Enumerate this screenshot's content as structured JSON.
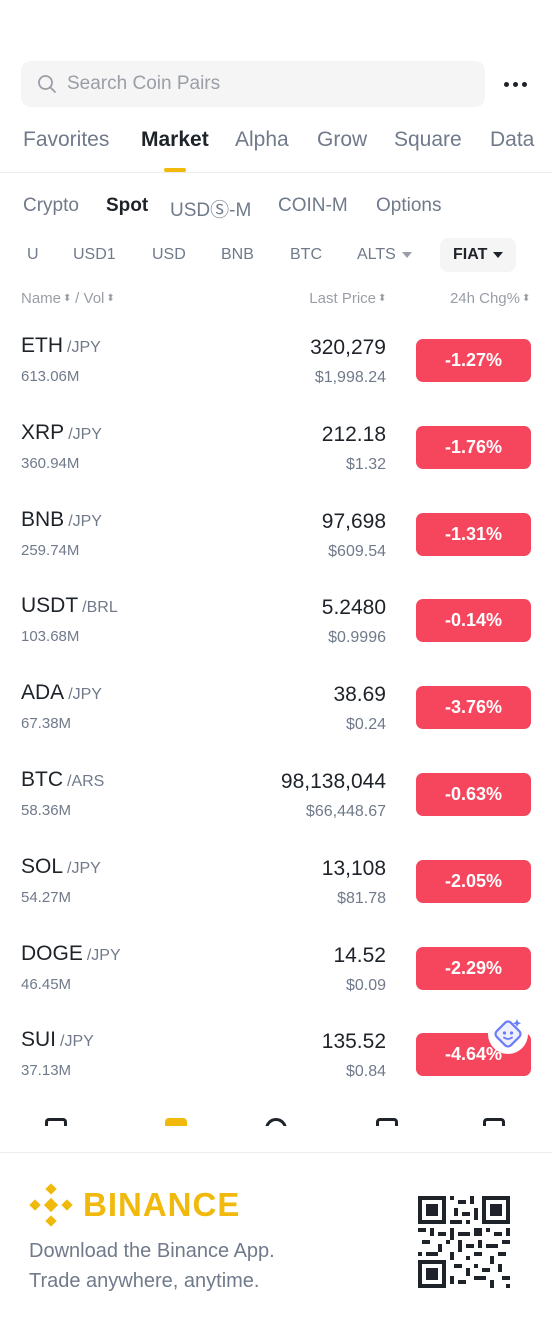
{
  "search": {
    "placeholder": "Search Coin Pairs"
  },
  "main_tabs": [
    "Favorites",
    "Market",
    "Alpha",
    "Grow",
    "Square",
    "Data"
  ],
  "main_tab_active": "Market",
  "sub_tabs": [
    "Crypto",
    "Spot",
    "USDⓈ-M",
    "COIN-M",
    "Options"
  ],
  "sub_tab_active": "Spot",
  "quote_filters": [
    "U",
    "USD1",
    "USD",
    "BNB",
    "BTC",
    "ALTS",
    "FIAT"
  ],
  "quote_filter_active": "FIAT",
  "columns": {
    "name": "Name",
    "vol": "Vol",
    "price": "Last Price",
    "change": "24h Chg%"
  },
  "rows": [
    {
      "base": "ETH",
      "quote": "/JPY",
      "volume": "613.06M",
      "price": "320,279",
      "fiat_price": "$1,998.24",
      "change": "-1.27%"
    },
    {
      "base": "XRP",
      "quote": "/JPY",
      "volume": "360.94M",
      "price": "212.18",
      "fiat_price": "$1.32",
      "change": "-1.76%"
    },
    {
      "base": "BNB",
      "quote": "/JPY",
      "volume": "259.74M",
      "price": "97,698",
      "fiat_price": "$609.54",
      "change": "-1.31%"
    },
    {
      "base": "USDT",
      "quote": "/BRL",
      "volume": "103.68M",
      "price": "5.2480",
      "fiat_price": "$0.9996",
      "change": "-0.14%"
    },
    {
      "base": "ADA",
      "quote": "/JPY",
      "volume": "67.38M",
      "price": "38.69",
      "fiat_price": "$0.24",
      "change": "-3.76%"
    },
    {
      "base": "BTC",
      "quote": "/ARS",
      "volume": "58.36M",
      "price": "98,138,044",
      "fiat_price": "$66,448.67",
      "change": "-0.63%"
    },
    {
      "base": "SOL",
      "quote": "/JPY",
      "volume": "54.27M",
      "price": "13,108",
      "fiat_price": "$81.78",
      "change": "-2.05%"
    },
    {
      "base": "DOGE",
      "quote": "/JPY",
      "volume": "46.45M",
      "price": "14.52",
      "fiat_price": "$0.09",
      "change": "-2.29%"
    },
    {
      "base": "SUI",
      "quote": "/JPY",
      "volume": "37.13M",
      "price": "135.52",
      "fiat_price": "$0.84",
      "change": "-4.64%"
    }
  ],
  "promo": {
    "brand": "BINANCE",
    "line1": "Download the Binance App.",
    "line2": "Trade anywhere, anytime."
  },
  "colors": {
    "accent": "#f0b90b",
    "negative": "#f6465d",
    "text": "#1e2329",
    "muted": "#707a8a"
  }
}
